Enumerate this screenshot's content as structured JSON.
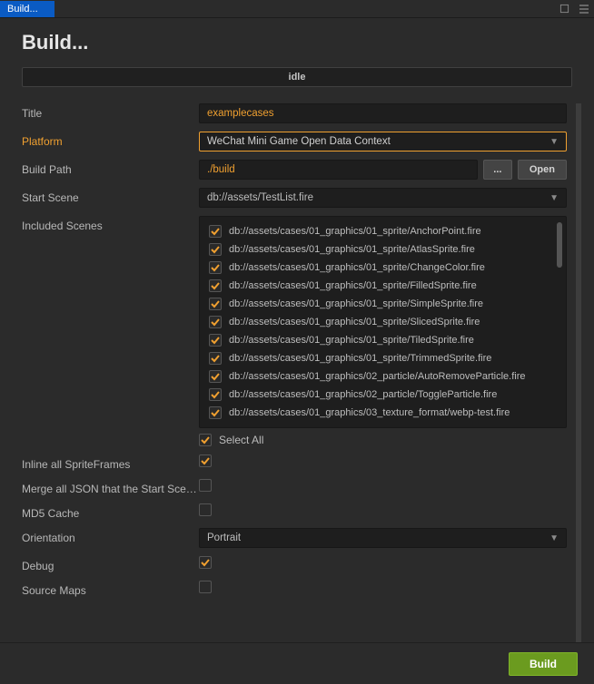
{
  "window": {
    "tab_label": "Build...",
    "title": "Build...",
    "status": "idle"
  },
  "colors": {
    "accent": "#f0a030",
    "tab_bg": "#0a5bc4",
    "build_btn": "#6b9b1f",
    "bg": "#2b2b2b",
    "panel": "#1e1e1e"
  },
  "form": {
    "title": {
      "label": "Title",
      "value": "examplecases"
    },
    "platform": {
      "label": "Platform",
      "value": "WeChat Mini Game Open Data Context"
    },
    "build_path": {
      "label": "Build Path",
      "value": "./build",
      "browse": "...",
      "open": "Open"
    },
    "start_scene": {
      "label": "Start Scene",
      "value": "db://assets/TestList.fire"
    },
    "included_scenes": {
      "label": "Included Scenes",
      "select_all_label": "Select All",
      "select_all_checked": true,
      "items": [
        {
          "checked": true,
          "path": "db://assets/cases/01_graphics/01_sprite/AnchorPoint.fire"
        },
        {
          "checked": true,
          "path": "db://assets/cases/01_graphics/01_sprite/AtlasSprite.fire"
        },
        {
          "checked": true,
          "path": "db://assets/cases/01_graphics/01_sprite/ChangeColor.fire"
        },
        {
          "checked": true,
          "path": "db://assets/cases/01_graphics/01_sprite/FilledSprite.fire"
        },
        {
          "checked": true,
          "path": "db://assets/cases/01_graphics/01_sprite/SimpleSprite.fire"
        },
        {
          "checked": true,
          "path": "db://assets/cases/01_graphics/01_sprite/SlicedSprite.fire"
        },
        {
          "checked": true,
          "path": "db://assets/cases/01_graphics/01_sprite/TiledSprite.fire"
        },
        {
          "checked": true,
          "path": "db://assets/cases/01_graphics/01_sprite/TrimmedSprite.fire"
        },
        {
          "checked": true,
          "path": "db://assets/cases/01_graphics/02_particle/AutoRemoveParticle.fire"
        },
        {
          "checked": true,
          "path": "db://assets/cases/01_graphics/02_particle/ToggleParticle.fire"
        },
        {
          "checked": true,
          "path": "db://assets/cases/01_graphics/03_texture_format/webp-test.fire"
        }
      ]
    },
    "inline_spriteframes": {
      "label": "Inline all SpriteFrames",
      "checked": true
    },
    "merge_json": {
      "label": "Merge all JSON that the Start Scen...",
      "checked": false
    },
    "md5_cache": {
      "label": "MD5 Cache",
      "checked": false
    },
    "orientation": {
      "label": "Orientation",
      "value": "Portrait"
    },
    "debug": {
      "label": "Debug",
      "checked": true
    },
    "source_maps": {
      "label": "Source Maps",
      "checked": false
    }
  },
  "footer": {
    "build_label": "Build"
  }
}
